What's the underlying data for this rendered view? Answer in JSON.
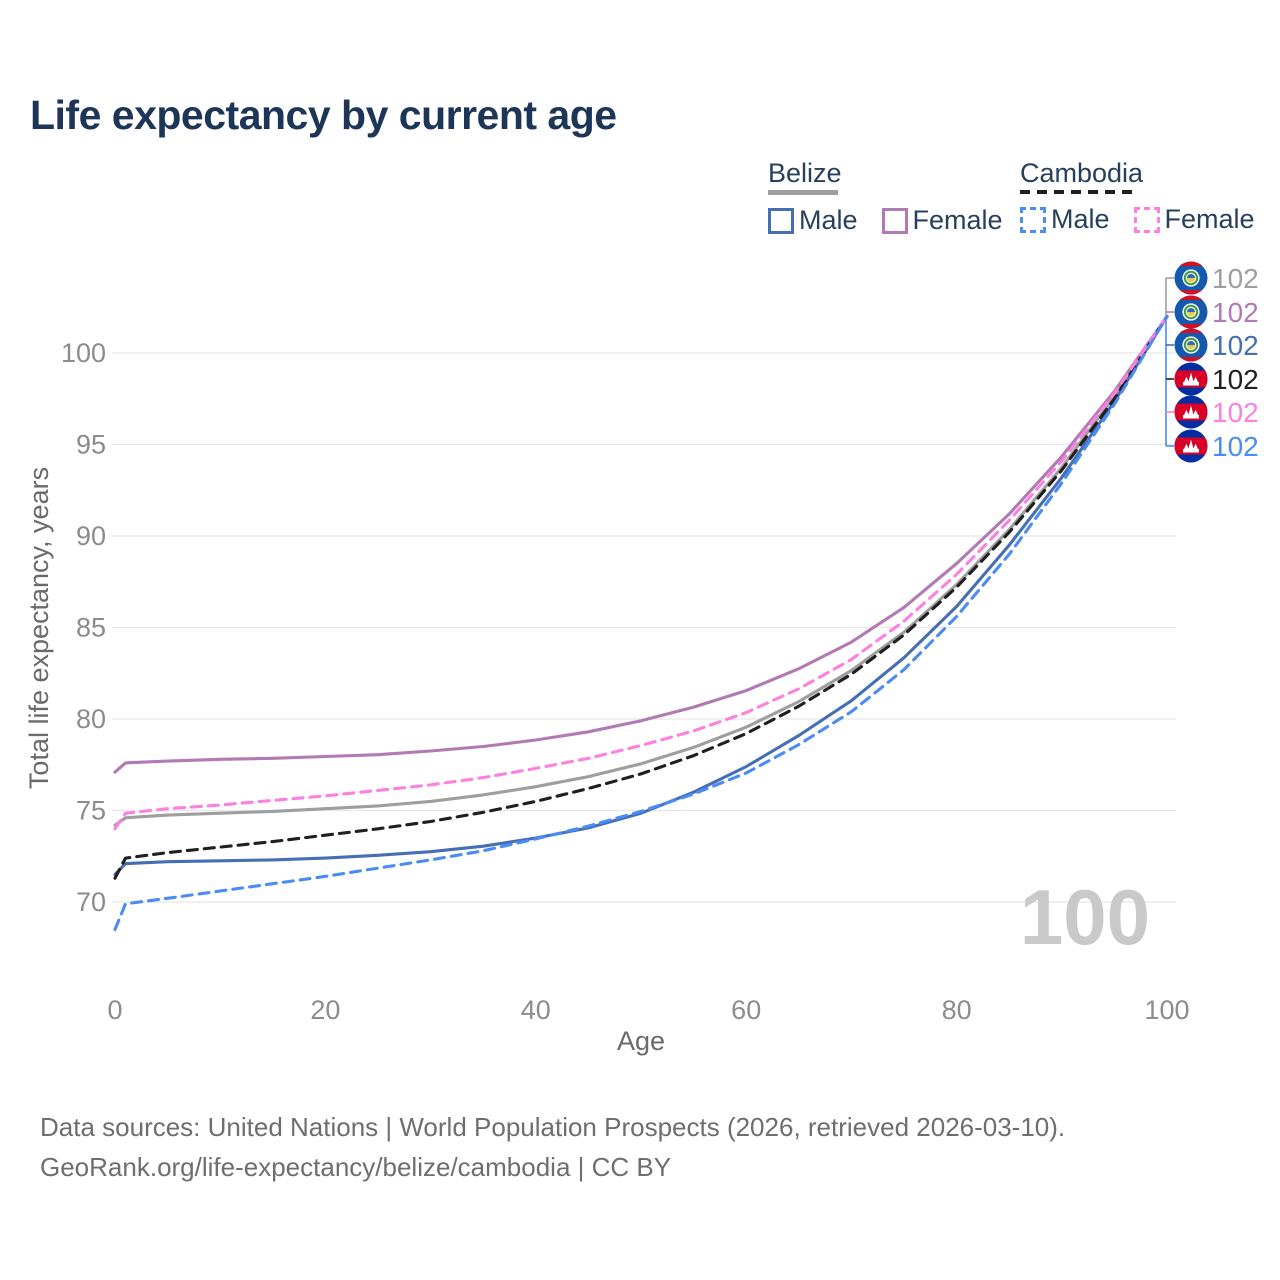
{
  "title": "Life expectancy by current age",
  "watermark": "100",
  "legend": {
    "groups": [
      {
        "name": "Belize",
        "underline": "solid",
        "underline_color": "#9e9e9e",
        "male_label": "Male",
        "female_label": "Female",
        "male_color": "#456fb4",
        "female_color": "#b27ab4",
        "dashed": false
      },
      {
        "name": "Cambodia",
        "underline": "dashed",
        "underline_color": "#1f1f1f",
        "male_label": "Male",
        "female_label": "Female",
        "male_color": "#4a8bf5",
        "female_color": "#fb80e0",
        "dashed": true
      }
    ]
  },
  "footer": {
    "line1": "Data sources: United Nations | World Population Prospects (2026, retrieved 2026-03-10).",
    "line2": "GeoRank.org/life-expectancy/belize/cambodia | CC BY"
  },
  "chart_data": {
    "type": "line",
    "title": "Life expectancy by current age",
    "xlabel": "Age",
    "ylabel": "Total life expectancy, years",
    "xlim": [
      0,
      100
    ],
    "ylim": [
      68,
      103
    ],
    "x_ticks": [
      0,
      20,
      40,
      60,
      80,
      100
    ],
    "y_ticks": [
      70,
      75,
      80,
      85,
      90,
      95,
      100
    ],
    "grid": "horizontal",
    "legend_position": "top-right",
    "hover_age_indicator": "100",
    "x": [
      0,
      1,
      5,
      10,
      15,
      20,
      25,
      30,
      35,
      40,
      45,
      50,
      55,
      60,
      65,
      70,
      75,
      80,
      85,
      90,
      95,
      100
    ],
    "series": [
      {
        "name": "Belize — Both sexes",
        "country": "Belize",
        "sex": "both",
        "color": "#9e9e9e",
        "dashed": false,
        "end_label": "102",
        "values": [
          74.2,
          74.6,
          74.75,
          74.85,
          74.95,
          75.1,
          75.25,
          75.5,
          75.85,
          76.3,
          76.85,
          77.55,
          78.45,
          79.55,
          80.95,
          82.65,
          84.75,
          87.35,
          90.35,
          93.75,
          97.65,
          102
        ]
      },
      {
        "name": "Belize — Female",
        "country": "Belize",
        "sex": "female",
        "color": "#b27ab4",
        "dashed": false,
        "end_label": "102",
        "values": [
          77.1,
          77.6,
          77.7,
          77.8,
          77.85,
          77.95,
          78.05,
          78.25,
          78.5,
          78.85,
          79.3,
          79.9,
          80.65,
          81.55,
          82.75,
          84.2,
          86.1,
          88.5,
          91.2,
          94.35,
          97.9,
          102
        ]
      },
      {
        "name": "Belize — Male",
        "country": "Belize",
        "sex": "male",
        "color": "#456fb4",
        "dashed": false,
        "end_label": "102",
        "values": [
          71.5,
          72.1,
          72.2,
          72.25,
          72.3,
          72.4,
          72.55,
          72.75,
          73.05,
          73.5,
          74.05,
          74.85,
          76.0,
          77.4,
          79.1,
          81.0,
          83.35,
          86.15,
          89.5,
          93.2,
          97.35,
          102
        ]
      },
      {
        "name": "Cambodia — Both sexes",
        "country": "Cambodia",
        "sex": "both",
        "color": "#1f1f1f",
        "dashed": true,
        "end_label": "102",
        "values": [
          71.3,
          72.4,
          72.7,
          73.0,
          73.3,
          73.65,
          74.0,
          74.4,
          74.9,
          75.5,
          76.2,
          77.0,
          78.0,
          79.2,
          80.7,
          82.45,
          84.6,
          87.2,
          90.2,
          93.6,
          97.5,
          102
        ]
      },
      {
        "name": "Cambodia — Female",
        "country": "Cambodia",
        "sex": "female",
        "color": "#fb80e0",
        "dashed": true,
        "end_label": "102",
        "values": [
          74.0,
          74.85,
          75.1,
          75.3,
          75.55,
          75.8,
          76.1,
          76.4,
          76.8,
          77.3,
          77.85,
          78.55,
          79.35,
          80.35,
          81.65,
          83.25,
          85.35,
          87.9,
          90.85,
          94.1,
          97.8,
          102
        ]
      },
      {
        "name": "Cambodia — Male",
        "country": "Cambodia",
        "sex": "male",
        "color": "#4a8bf5",
        "dashed": true,
        "end_label": "102",
        "values": [
          68.5,
          69.9,
          70.2,
          70.6,
          71.0,
          71.4,
          71.85,
          72.3,
          72.8,
          73.45,
          74.15,
          74.95,
          75.9,
          77.05,
          78.6,
          80.4,
          82.7,
          85.6,
          89.0,
          92.9,
          97.2,
          102
        ]
      }
    ],
    "end_labels": [
      {
        "label": "102",
        "series": "Belize — Both sexes",
        "flag": "belize",
        "color": "#9e9e9e"
      },
      {
        "label": "102",
        "series": "Belize — Female",
        "flag": "belize",
        "color": "#b27ab4"
      },
      {
        "label": "102",
        "series": "Belize — Male",
        "flag": "belize",
        "color": "#456fb4"
      },
      {
        "label": "102",
        "series": "Cambodia — Both sexes",
        "flag": "cambodia",
        "color": "#1f1f1f"
      },
      {
        "label": "102",
        "series": "Cambodia — Female",
        "flag": "cambodia",
        "color": "#fb80e0"
      },
      {
        "label": "102",
        "series": "Cambodia — Male",
        "flag": "cambodia",
        "color": "#4a8bf5"
      }
    ]
  }
}
